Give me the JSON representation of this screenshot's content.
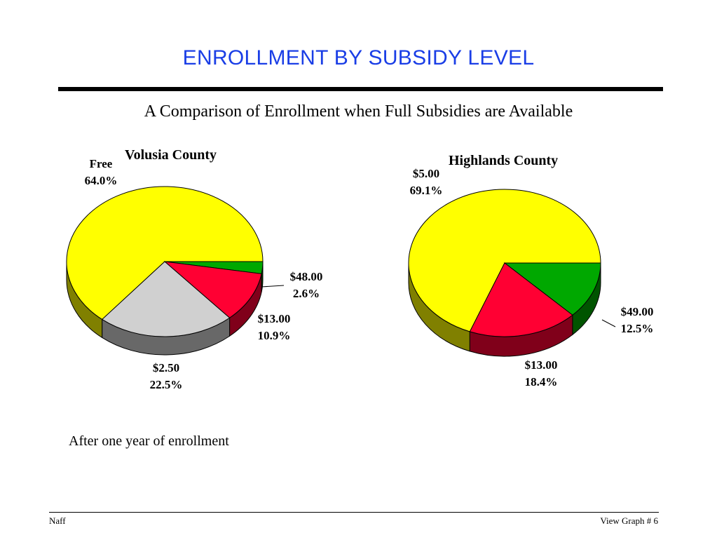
{
  "page": {
    "title": "ENROLLMENT BY SUBSIDY LEVEL",
    "subtitle": "A Comparison of Enrollment when Full Subsidies are Available",
    "note": "After one year of enrollment",
    "footer_left": "Naff",
    "footer_right": "View Graph  # 6",
    "title_color": "#1a3ee6"
  },
  "chart_data": [
    {
      "type": "pie",
      "title": "Volusia County",
      "slices": [
        {
          "label": "Free",
          "value": 64.0,
          "pct": "64.0%",
          "color": "#ffff00",
          "side": "#808000"
        },
        {
          "label": "$48.00",
          "value": 2.6,
          "pct": "2.6%",
          "color": "#00a800",
          "side": "#005400"
        },
        {
          "label": "$13.00",
          "value": 10.9,
          "pct": "10.9%",
          "color": "#ff0033",
          "side": "#80001a"
        },
        {
          "label": "$2.50",
          "value": 22.5,
          "pct": "22.5%",
          "color": "#d0d0d0",
          "side": "#686868"
        }
      ]
    },
    {
      "type": "pie",
      "title": "Highlands County",
      "slices": [
        {
          "label": "$5.00",
          "value": 69.1,
          "pct": "69.1%",
          "color": "#ffff00",
          "side": "#808000"
        },
        {
          "label": "$49.00",
          "value": 12.5,
          "pct": "12.5%",
          "color": "#00a800",
          "side": "#005400"
        },
        {
          "label": "$13.00",
          "value": 18.4,
          "pct": "18.4%",
          "color": "#ff0033",
          "side": "#80001a"
        }
      ]
    }
  ]
}
